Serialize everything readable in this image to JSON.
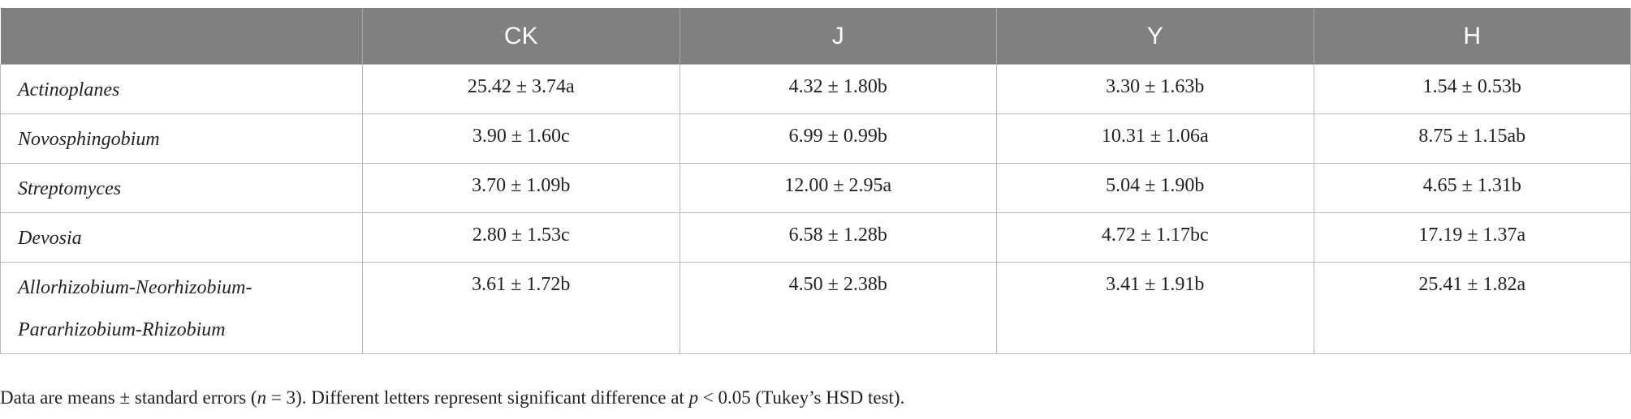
{
  "table": {
    "header": [
      "",
      "CK",
      "J",
      "Y",
      "H"
    ],
    "rows": [
      [
        "Actinoplanes",
        "25.42 ± 3.74a",
        "4.32 ± 1.80b",
        "3.30 ± 1.63b",
        "1.54 ± 0.53b"
      ],
      [
        "Novosphingobium",
        "3.90 ± 1.60c",
        "6.99 ± 0.99b",
        "10.31 ± 1.06a",
        "8.75 ± 1.15ab"
      ],
      [
        "Streptomyces",
        "3.70 ± 1.09b",
        "12.00 ± 2.95a",
        "5.04 ± 1.90b",
        "4.65 ± 1.31b"
      ],
      [
        "Devosia",
        "2.80 ± 1.53c",
        "6.58 ± 1.28b",
        "4.72 ± 1.17bc",
        "17.19 ± 1.37a"
      ],
      [
        "Allorhizobium-Neorhizobium-Pararhizobium-Rhizobium",
        "3.61 ± 1.72b",
        "4.50 ± 2.38b",
        "3.41 ± 1.91b",
        "25.41 ± 1.82a"
      ]
    ]
  },
  "footnote": [
    "Data are means ± standard errors (",
    "n",
    " = 3). Different letters represent significant difference at ",
    "p",
    " < 0.05 (Tukey’s HSD test)."
  ]
}
